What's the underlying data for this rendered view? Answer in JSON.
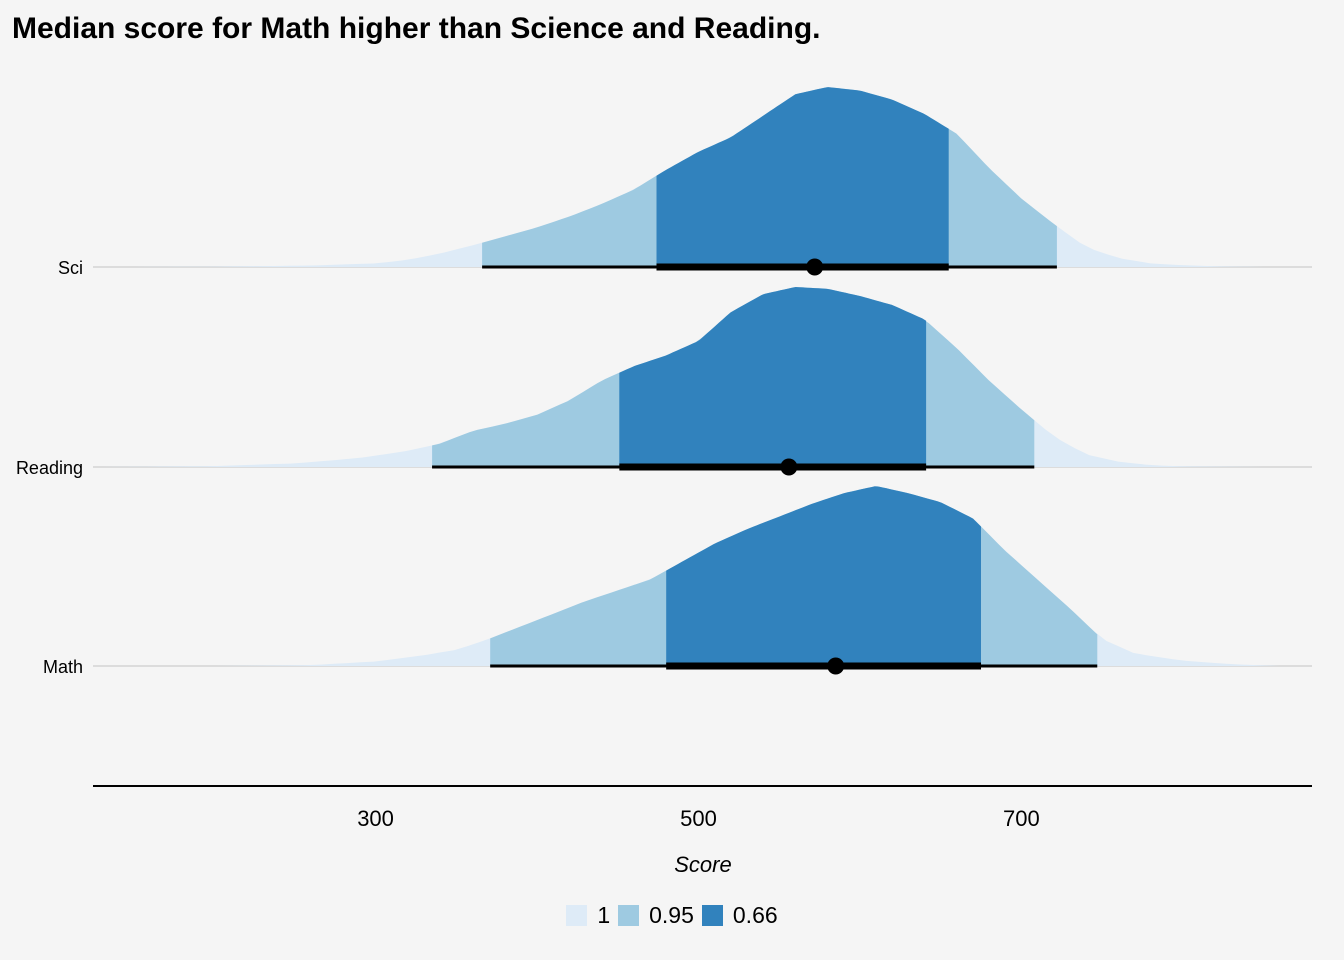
{
  "chart_data": {
    "type": "area",
    "subtype": "ridgeline interval density",
    "title": "Median score for Math higher than Science and Reading.",
    "xlabel": "Score",
    "ylabel": "",
    "xlim": [
      125,
      880
    ],
    "xticks": [
      300,
      500,
      700
    ],
    "grid": false,
    "legend_position": "bottom",
    "legend": [
      {
        "label": "1",
        "color": "#deebf7"
      },
      {
        "label": "0.95",
        "color": "#9ecae1"
      },
      {
        "label": "0.66",
        "color": "#3182bd"
      }
    ],
    "series": [
      {
        "name": "Sci",
        "median": 572,
        "interval_66": [
          474,
          655
        ],
        "interval_95": [
          366,
          722
        ],
        "density_x": [
          150,
          200,
          260,
          300,
          320,
          340,
          360,
          380,
          400,
          420,
          440,
          460,
          480,
          500,
          520,
          540,
          560,
          580,
          600,
          620,
          640,
          660,
          680,
          700,
          720,
          740,
          760,
          780,
          800,
          820,
          850
        ],
        "density_y": [
          0,
          0.002,
          0.008,
          0.02,
          0.04,
          0.075,
          0.12,
          0.17,
          0.22,
          0.28,
          0.35,
          0.43,
          0.54,
          0.64,
          0.72,
          0.84,
          0.96,
          1.0,
          0.98,
          0.93,
          0.85,
          0.74,
          0.55,
          0.38,
          0.24,
          0.11,
          0.05,
          0.02,
          0.01,
          0.004,
          0
        ]
      },
      {
        "name": "Reading",
        "median": 556,
        "interval_66": [
          451,
          641
        ],
        "interval_95": [
          335,
          708
        ],
        "density_x": [
          130,
          200,
          250,
          290,
          320,
          340,
          360,
          380,
          400,
          420,
          440,
          460,
          480,
          500,
          520,
          540,
          560,
          580,
          600,
          620,
          640,
          660,
          680,
          700,
          720,
          740,
          760,
          780,
          800,
          850
        ],
        "density_y": [
          0,
          0.005,
          0.02,
          0.05,
          0.09,
          0.13,
          0.2,
          0.24,
          0.29,
          0.37,
          0.48,
          0.56,
          0.62,
          0.7,
          0.86,
          0.96,
          1.0,
          0.99,
          0.95,
          0.9,
          0.82,
          0.66,
          0.48,
          0.32,
          0.17,
          0.07,
          0.03,
          0.01,
          0.004,
          0
        ]
      },
      {
        "name": "Math",
        "median": 585,
        "interval_66": [
          480,
          675
        ],
        "interval_95": [
          371,
          747
        ],
        "density_x": [
          200,
          260,
          300,
          330,
          350,
          370,
          390,
          410,
          430,
          450,
          470,
          490,
          510,
          530,
          550,
          570,
          590,
          610,
          630,
          650,
          670,
          690,
          710,
          730,
          750,
          770,
          800,
          830,
          860
        ],
        "density_y": [
          0,
          0.005,
          0.025,
          0.06,
          0.09,
          0.15,
          0.22,
          0.29,
          0.36,
          0.42,
          0.48,
          0.58,
          0.68,
          0.76,
          0.83,
          0.9,
          0.96,
          1.0,
          0.96,
          0.91,
          0.82,
          0.64,
          0.48,
          0.32,
          0.15,
          0.07,
          0.03,
          0.01,
          0
        ]
      }
    ]
  }
}
